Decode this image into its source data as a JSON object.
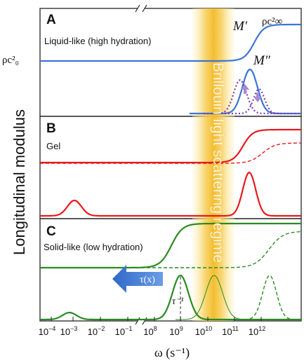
{
  "ylabel": "Longitudinal modulus",
  "xlabel": "ω (s⁻¹)",
  "band_label": "Brillouin light scattering regime",
  "inf_label": "ρc²∞",
  "zero_label": "ρc²₀",
  "x_ticks": [
    {
      "base": "10",
      "exp": "−4"
    },
    {
      "base": "10",
      "exp": "−3"
    },
    {
      "base": "10",
      "exp": "−2"
    },
    {
      "base": "10",
      "exp": "−1"
    },
    {
      "base": "10",
      "exp": "8"
    },
    {
      "base": "10",
      "exp": "9"
    },
    {
      "base": "10",
      "exp": "10"
    },
    {
      "base": "10",
      "exp": "11"
    },
    {
      "base": "10",
      "exp": "12"
    }
  ],
  "panels": [
    {
      "letter": "A",
      "title": "Liquid-like (high hydration)",
      "storage_label": "M′",
      "loss_label": "M″"
    },
    {
      "letter": "B",
      "title": "Gel"
    },
    {
      "letter": "C",
      "title": "Solid-like (low hydration)"
    }
  ],
  "tau_arrow_label": "τ(x)",
  "tau_inverse_label": "τ⁻¹",
  "colors": {
    "A": "#3a74d9",
    "B": "#e8191c",
    "C": "#2a8a1f",
    "dotted": "#7b3db2",
    "band": "#f4c54a",
    "arrow": "#3a72c8"
  }
}
